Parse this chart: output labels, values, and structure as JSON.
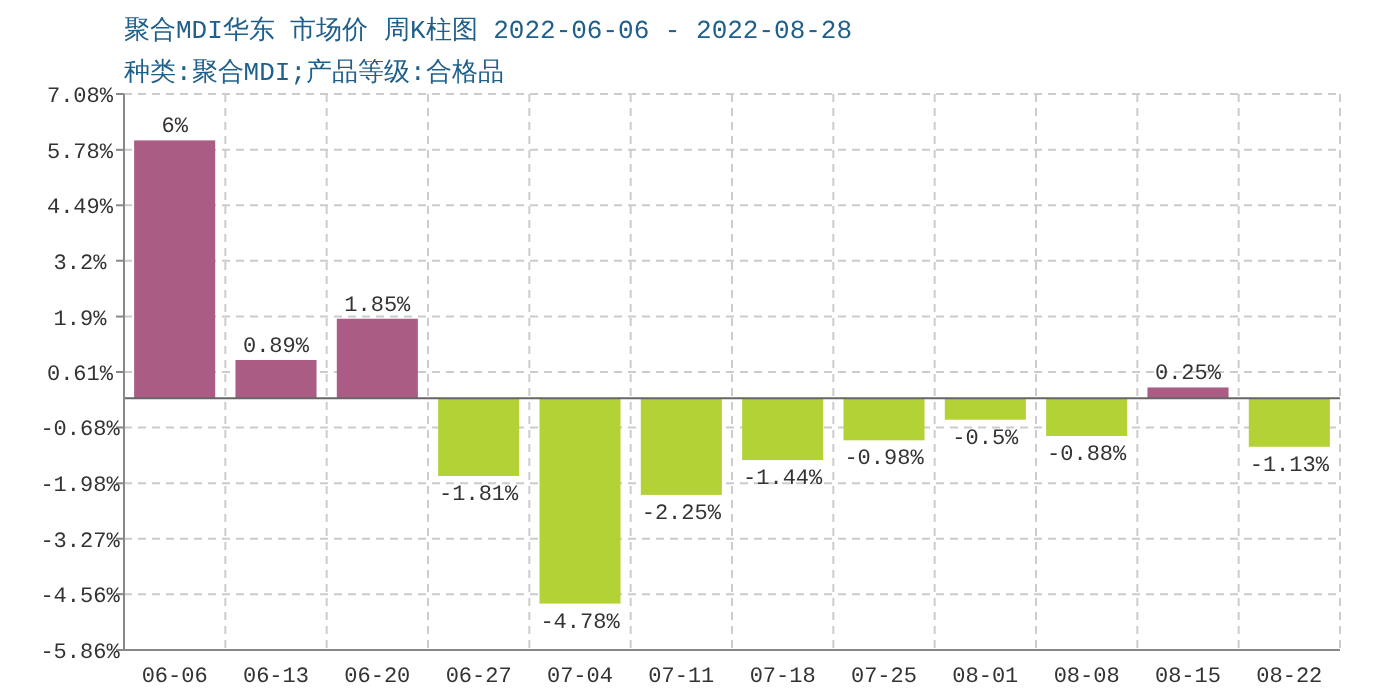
{
  "chart_data": {
    "type": "bar",
    "title": "聚合MDI华东 市场价 周K柱图 2022-06-06 - 2022-08-28",
    "subtitle": "种类:聚合MDI;产品等级:合格品",
    "categories": [
      "06-06",
      "06-13",
      "06-20",
      "06-27",
      "07-04",
      "07-11",
      "07-18",
      "07-25",
      "08-01",
      "08-08",
      "08-15",
      "08-22"
    ],
    "values": [
      6,
      0.89,
      1.85,
      -1.81,
      -4.78,
      -2.25,
      -1.44,
      -0.98,
      -0.5,
      -0.88,
      0.25,
      -1.13
    ],
    "colors": [
      "#ab5c85",
      "#ab5c85",
      "#ab5c85",
      "#b2d235",
      "#b2d235",
      "#b2d235",
      "#b2d235",
      "#b2d235",
      "#b2d235",
      "#b2d235",
      "#ab5c85",
      "#b2d235"
    ],
    "value_labels": [
      "6%",
      "0.89%",
      "1.85%",
      "-1.81%",
      "-4.78%",
      "-2.25%",
      "-1.44%",
      "-0.98%",
      "-0.5%",
      "-0.88%",
      "0.25%",
      "-1.13%"
    ],
    "ylim": [
      -5.86,
      7.08
    ],
    "yticks": [
      {
        "value": -5.86,
        "label": "-5.86%"
      },
      {
        "value": -4.56,
        "label": "-4.56%"
      },
      {
        "value": -3.27,
        "label": "-3.27%"
      },
      {
        "value": -1.98,
        "label": "-1.98%"
      },
      {
        "value": -0.68,
        "label": "-0.68%"
      },
      {
        "value": 0.61,
        "label": "0.61%"
      },
      {
        "value": 1.9,
        "label": "1.9%"
      },
      {
        "value": 3.2,
        "label": "3.2%"
      },
      {
        "value": 4.49,
        "label": "4.49%"
      },
      {
        "value": 5.78,
        "label": "5.78%"
      },
      {
        "value": 7.08,
        "label": "7.08%"
      }
    ],
    "grid": true
  }
}
